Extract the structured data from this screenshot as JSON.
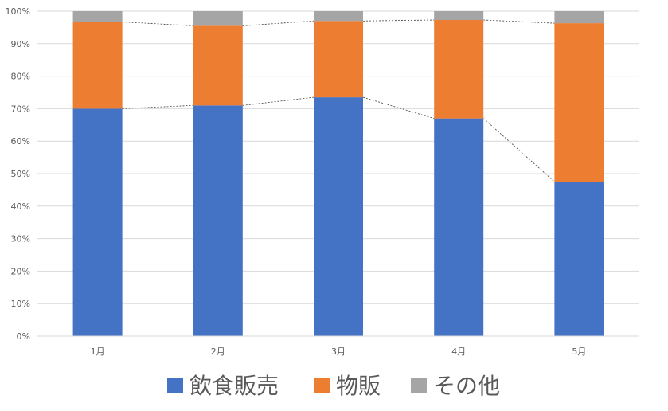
{
  "chart_data": {
    "type": "bar",
    "stacked": true,
    "percent": true,
    "categories": [
      "1月",
      "2月",
      "3月",
      "4月",
      "5月"
    ],
    "series": [
      {
        "name": "飲食販売",
        "color": "#4472C4",
        "values": [
          70.0,
          71.0,
          73.5,
          67.0,
          47.5
        ]
      },
      {
        "name": "物販",
        "color": "#ED7D31",
        "values": [
          26.7,
          24.5,
          23.5,
          30.3,
          48.8
        ]
      },
      {
        "name": "その他",
        "color": "#A5A5A5",
        "values": [
          3.3,
          4.5,
          3.0,
          2.7,
          3.7
        ]
      }
    ],
    "ylim": [
      0,
      100
    ],
    "yticks": [
      "0%",
      "10%",
      "20%",
      "30%",
      "40%",
      "50%",
      "60%",
      "70%",
      "80%",
      "90%",
      "100%"
    ],
    "grid": true,
    "series_lines": true,
    "legend": "bottom"
  }
}
